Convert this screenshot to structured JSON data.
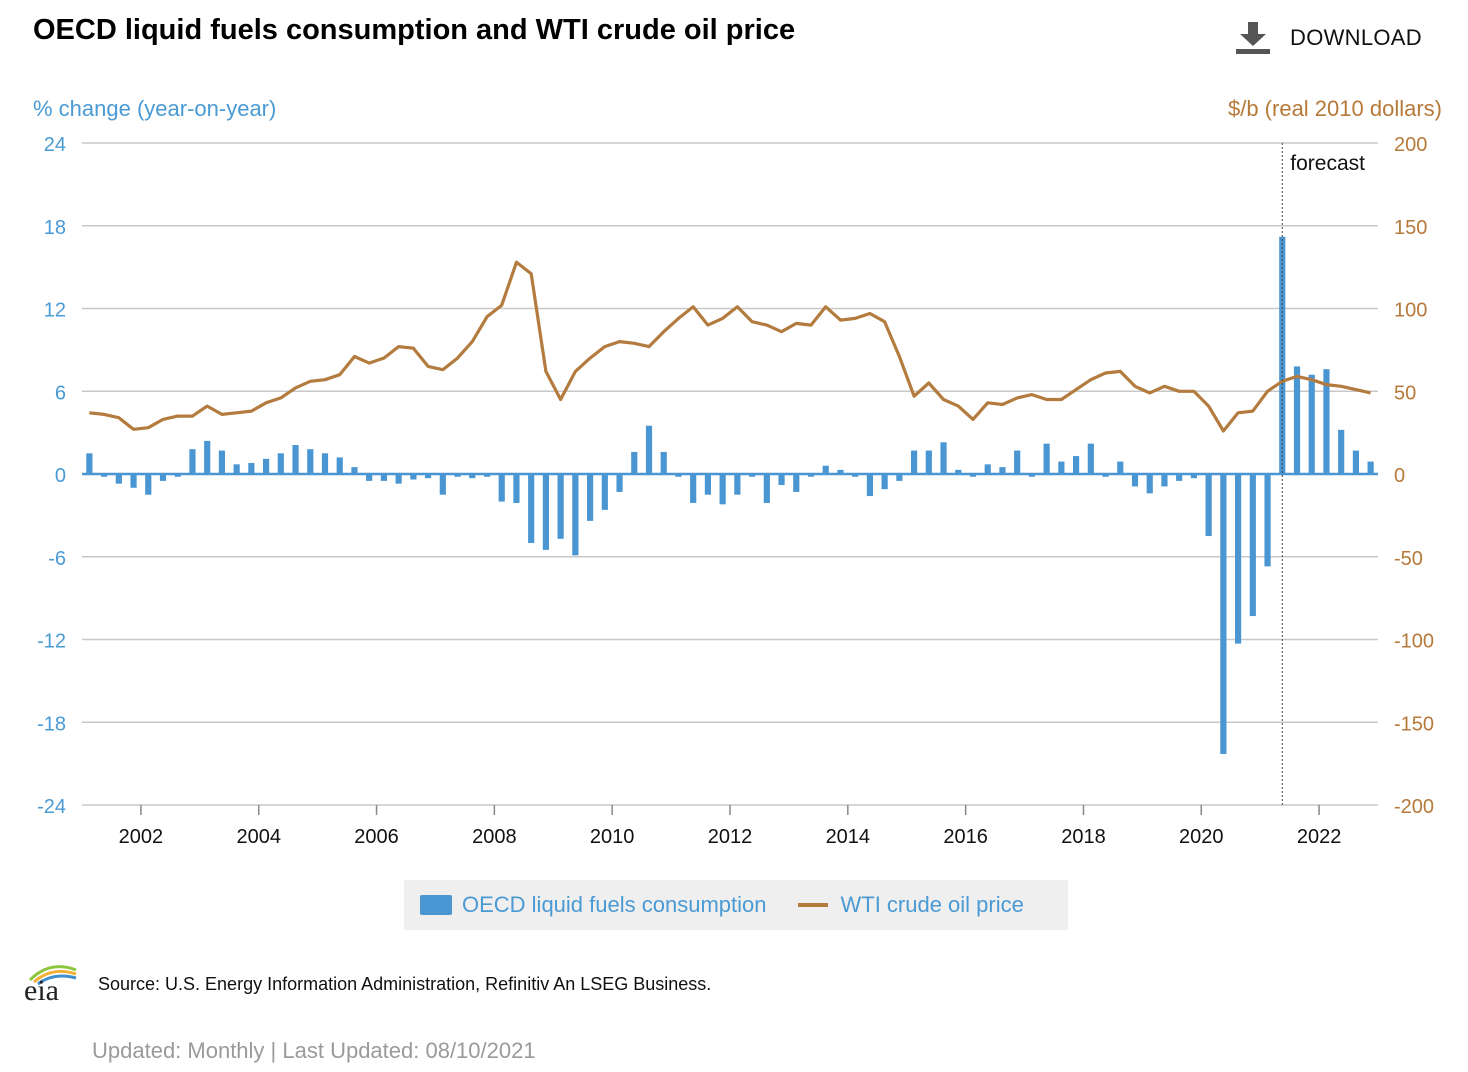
{
  "header": {
    "title": "OECD liquid fuels consumption and WTI crude oil price",
    "download_label": "DOWNLOAD"
  },
  "footer": {
    "source": "Source: U.S. Energy Information Administration, Refinitiv An LSEG Business.",
    "updated": "Updated: Monthly | Last Updated: 08/10/2021",
    "logo_text": "eia"
  },
  "colors": {
    "bar": "#4a96d2",
    "line": "#b37b3e",
    "left_axis": "#4a9ad4",
    "right_axis": "#b7793a",
    "grid": "#c8c8c8"
  },
  "chart_data": {
    "type": "bar+line",
    "title": "OECD liquid fuels consumption and WTI crude oil price",
    "ylabel_left": "% change (year-on-year)",
    "ylabel_right": "$/b (real 2010 dollars)",
    "ylim_left": [
      -24,
      24
    ],
    "ylim_right": [
      -200,
      200
    ],
    "yticks_left": [
      "24",
      "18",
      "12",
      "6",
      "0",
      "-6",
      "-12",
      "-18",
      "-24"
    ],
    "yticks_right": [
      "200",
      "150",
      "100",
      "50",
      "0",
      "-50",
      "-100",
      "-150",
      "-200"
    ],
    "xlim": [
      2001.0,
      2023.0
    ],
    "xticks": [
      "2002",
      "2004",
      "2006",
      "2008",
      "2010",
      "2012",
      "2014",
      "2016",
      "2018",
      "2020",
      "2022"
    ],
    "forecast_start": 2021.375,
    "forecast_label": "forecast",
    "grid": true,
    "legend_position": "bottom-center",
    "series": [
      {
        "name": "OECD liquid fuels consumption",
        "axis": "left",
        "kind": "bar",
        "x_start": 2001.0,
        "step": 0.25,
        "values": [
          1.5,
          -0.2,
          -0.7,
          -1.0,
          -1.5,
          -0.5,
          -0.2,
          1.8,
          2.4,
          1.7,
          0.7,
          0.8,
          1.1,
          1.5,
          2.1,
          1.8,
          1.5,
          1.2,
          0.5,
          -0.5,
          -0.5,
          -0.7,
          -0.4,
          -0.3,
          -1.5,
          -0.2,
          -0.3,
          -0.2,
          -2.0,
          -2.1,
          -5.0,
          -5.5,
          -4.7,
          -5.9,
          -3.4,
          -2.6,
          -1.3,
          1.6,
          3.5,
          1.6,
          -0.2,
          -2.1,
          -1.5,
          -2.2,
          -1.5,
          -0.2,
          -2.1,
          -0.8,
          -1.3,
          -0.2,
          0.6,
          0.3,
          -0.2,
          -1.6,
          -1.1,
          -0.5,
          1.7,
          1.7,
          2.3,
          0.3,
          -0.2,
          0.7,
          0.5,
          1.7,
          -0.2,
          2.2,
          0.9,
          1.3,
          2.2,
          -0.2,
          0.9,
          -0.9,
          -1.4,
          -0.9,
          -0.5,
          -0.3,
          -4.5,
          -20.3,
          -12.3,
          -10.3,
          -6.7,
          17.2,
          7.8,
          7.2,
          7.6,
          3.2,
          1.7,
          0.9
        ]
      },
      {
        "name": "WTI crude oil price",
        "axis": "right",
        "kind": "line",
        "x_start": 2001.0,
        "step": 0.25,
        "values": [
          37,
          36,
          34,
          27,
          28,
          33,
          35,
          35,
          41,
          36,
          37,
          38,
          43,
          46,
          52,
          56,
          57,
          60,
          71,
          67,
          70,
          77,
          76,
          65,
          63,
          70,
          80,
          95,
          102,
          128,
          121,
          62,
          45,
          62,
          70,
          77,
          80,
          79,
          77,
          86,
          94,
          101,
          90,
          94,
          101,
          92,
          90,
          86,
          91,
          90,
          101,
          93,
          94,
          97,
          92,
          71,
          47,
          55,
          45,
          41,
          33,
          43,
          42,
          46,
          48,
          45,
          45,
          51,
          57,
          61,
          62,
          53,
          49,
          53,
          50,
          50,
          41,
          26,
          37,
          38,
          50,
          56,
          59,
          57,
          54,
          53,
          51,
          49
        ]
      }
    ]
  }
}
